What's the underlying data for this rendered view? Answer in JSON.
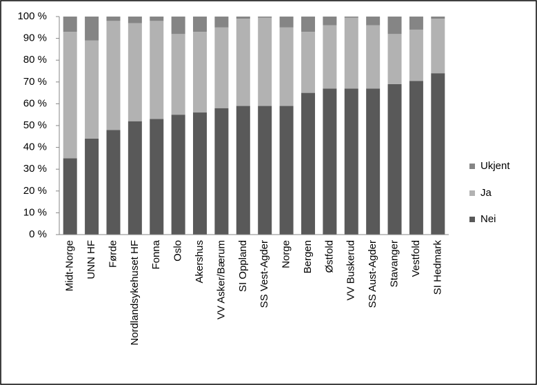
{
  "chart_data": {
    "type": "stacked-bar",
    "categories": [
      "Midt-Norge",
      "UNN HF",
      "Førde",
      "Nordlandsykehuset HF",
      "Fonna",
      "Oslo",
      "Akershus",
      "VV Asker/Bærum",
      "SI Oppland",
      "SS Vest-Agder",
      "Norge",
      "Bergen",
      "Østfold",
      "VV Buskerud",
      "SS Aust-Agder",
      "Stavanger",
      "Vestfold",
      "SI Hedmark"
    ],
    "series": [
      {
        "name": "Nei",
        "color": "#595959",
        "values": [
          35,
          44,
          48,
          52,
          53,
          55,
          56,
          58,
          59,
          59,
          59,
          65,
          67,
          67,
          67,
          69,
          70.5,
          74
        ]
      },
      {
        "name": "Ja",
        "color": "#b2b2b2",
        "values": [
          58,
          45,
          50,
          45,
          45,
          37,
          37,
          37,
          40,
          40.5,
          36,
          28,
          29,
          32.5,
          29,
          23,
          23.5,
          25
        ]
      },
      {
        "name": "Ukjent",
        "color": "#858585",
        "values": [
          7,
          11,
          2,
          3,
          2,
          8,
          7,
          5,
          1,
          0.5,
          5,
          7,
          4,
          0.5,
          4,
          8,
          6,
          1
        ]
      }
    ],
    "ylim": [
      0,
      100
    ],
    "yticks": [
      {
        "value": 0,
        "label": "0 %"
      },
      {
        "value": 10,
        "label": "10 %"
      },
      {
        "value": 20,
        "label": "20 %"
      },
      {
        "value": 30,
        "label": "30 %"
      },
      {
        "value": 40,
        "label": "40 %"
      },
      {
        "value": 50,
        "label": "50 %"
      },
      {
        "value": 60,
        "label": "60 %"
      },
      {
        "value": 70,
        "label": "70 %"
      },
      {
        "value": 80,
        "label": "80 %"
      },
      {
        "value": 90,
        "label": "90 %"
      },
      {
        "value": 100,
        "label": "100 %"
      }
    ]
  }
}
